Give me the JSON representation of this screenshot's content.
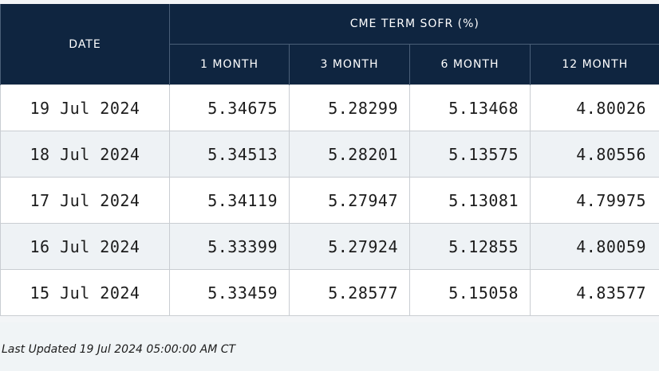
{
  "table": {
    "date_header": "DATE",
    "group_header": "CME TERM SOFR (%)",
    "columns": [
      "1 MONTH",
      "3 MONTH",
      "6 MONTH",
      "12 MONTH"
    ],
    "rows": [
      {
        "date": "19 Jul 2024",
        "values": [
          "5.34675",
          "5.28299",
          "5.13468",
          "4.80026"
        ]
      },
      {
        "date": "18 Jul 2024",
        "values": [
          "5.34513",
          "5.28201",
          "5.13575",
          "4.80556"
        ]
      },
      {
        "date": "17 Jul 2024",
        "values": [
          "5.34119",
          "5.27947",
          "5.13081",
          "4.79975"
        ]
      },
      {
        "date": "16 Jul 2024",
        "values": [
          "5.33399",
          "5.27924",
          "5.12855",
          "4.80059"
        ]
      },
      {
        "date": "15 Jul 2024",
        "values": [
          "5.33459",
          "5.28577",
          "5.15058",
          "4.83577"
        ]
      }
    ]
  },
  "footer": {
    "last_updated": "Last Updated 19 Jul 2024 05:00:00 AM CT"
  },
  "colors": {
    "header_bg": "#0f2540",
    "alt_row_bg": "#eef2f5"
  }
}
